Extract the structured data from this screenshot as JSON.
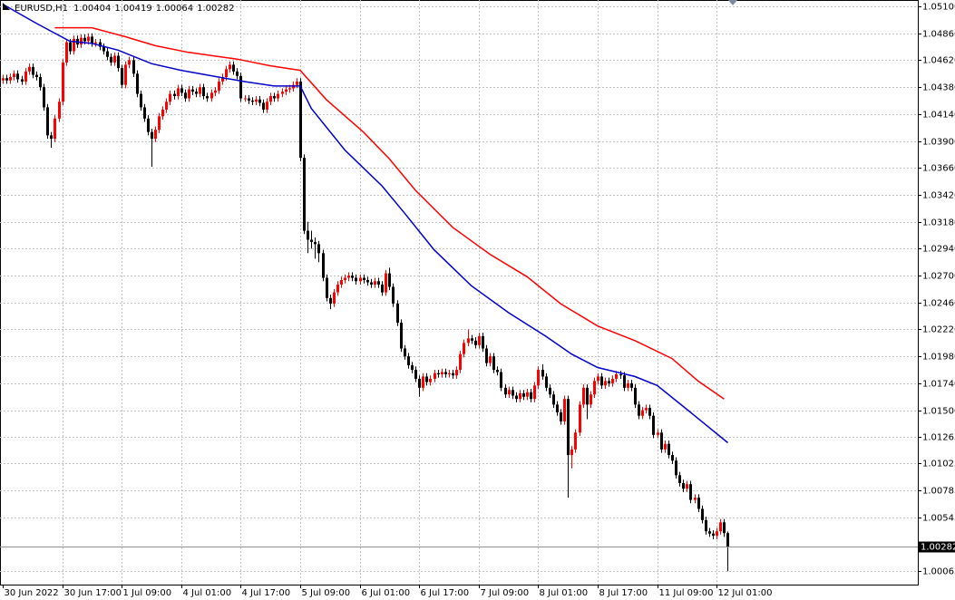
{
  "chart_data": {
    "type": "candlestick",
    "symbol": "EURUSD,H1",
    "bull_color": "#ff0000",
    "bear_color": "#000000",
    "grid": true,
    "ylim": [
      0.99945,
      1.05157
    ],
    "yticks": [
      {
        "value": 1.051,
        "label": "1.05100"
      },
      {
        "value": 1.0486,
        "label": "1.04860"
      },
      {
        "value": 1.0462,
        "label": "1.04620"
      },
      {
        "value": 1.0438,
        "label": "1.04380"
      },
      {
        "value": 1.0414,
        "label": "1.04140"
      },
      {
        "value": 1.039,
        "label": "1.03900"
      },
      {
        "value": 1.0366,
        "label": "1.03660"
      },
      {
        "value": 1.0342,
        "label": "1.03420"
      },
      {
        "value": 1.0318,
        "label": "1.03180"
      },
      {
        "value": 1.0294,
        "label": "1.02940"
      },
      {
        "value": 1.027,
        "label": "1.02700"
      },
      {
        "value": 1.0246,
        "label": "1.02460"
      },
      {
        "value": 1.0222,
        "label": "1.02220"
      },
      {
        "value": 1.0198,
        "label": "1.01980"
      },
      {
        "value": 1.0174,
        "label": "1.01740"
      },
      {
        "value": 1.015,
        "label": "1.01500"
      },
      1.01265,
      1.01025,
      1.00785,
      1.00545,
      1.00065
    ],
    "categories": [
      "30 Jun 2022",
      null,
      null,
      null,
      null,
      null,
      null,
      null,
      null,
      null,
      null,
      null,
      null,
      null,
      null,
      null,
      "30 Jun 17:00",
      null,
      null,
      null,
      null,
      null,
      null,
      null,
      null,
      null,
      null,
      null,
      null,
      null,
      null,
      null,
      "1 Jul 09:00",
      null,
      null,
      null,
      null,
      null,
      null,
      null,
      null,
      null,
      null,
      null,
      null,
      null,
      null,
      null,
      "4 Jul 01:00",
      null,
      null,
      null,
      null,
      null,
      null,
      null,
      null,
      null,
      null,
      null,
      null,
      null,
      null,
      null,
      "4 Jul 17:00",
      null,
      null,
      null,
      null,
      null,
      null,
      null,
      null,
      null,
      null,
      null,
      null,
      null,
      null,
      null,
      "5 Jul 09:00",
      null,
      null,
      null,
      null,
      null,
      null,
      null,
      null,
      null,
      null,
      null,
      null,
      null,
      null,
      null,
      "6 Jul 01:00",
      null,
      null,
      null,
      null,
      null,
      null,
      null,
      null,
      null,
      null,
      null,
      null,
      null,
      null,
      null,
      "6 Jul 17:00",
      null,
      null,
      null,
      null,
      null,
      null,
      null,
      null,
      null,
      null,
      null,
      null,
      null,
      null,
      null,
      "7 Jul 09:00",
      null,
      null,
      null,
      null,
      null,
      null,
      null,
      null,
      null,
      null,
      null,
      null,
      null,
      null,
      null,
      "8 Jul 01:00",
      null,
      null,
      null,
      null,
      null,
      null,
      null,
      null,
      null,
      null,
      null,
      null,
      null,
      null,
      null,
      "8 Jul 17:00",
      null,
      null,
      null,
      null,
      null,
      null,
      null,
      null,
      null,
      null,
      null,
      null,
      null,
      null,
      null,
      "11 Jul 09:00",
      null,
      null,
      null,
      null,
      null,
      null,
      null,
      null,
      null,
      null,
      null,
      null,
      null,
      null,
      null,
      "12 Jul 01:00",
      null,
      null,
      null
    ],
    "open": [
      1.0444,
      1.0446,
      1.0444,
      1.0447,
      1.045,
      1.0445,
      1.0443,
      1.0452,
      1.0456,
      1.0449,
      1.0447,
      1.0438,
      1.042,
      1.0395,
      1.0392,
      1.041,
      1.0425,
      1.046,
      1.0478,
      1.047,
      1.0481,
      1.0476,
      1.0482,
      1.0479,
      1.0483,
      1.0477,
      1.0478,
      1.0474,
      1.047,
      1.0465,
      1.046,
      1.0466,
      1.0455,
      1.044,
      1.0458,
      1.0462,
      1.045,
      1.0432,
      1.042,
      1.041,
      1.0398,
      1.0392,
      1.04,
      1.0412,
      1.0418,
      1.0425,
      1.0432,
      1.043,
      1.0437,
      1.0433,
      1.0428,
      1.0436,
      1.0434,
      1.0432,
      1.0438,
      1.043,
      1.0428,
      1.0433,
      1.0435,
      1.0443,
      1.0447,
      1.0454,
      1.0458,
      1.0452,
      1.0448,
      1.0428,
      1.0428,
      1.0426,
      1.0425,
      1.0427,
      1.0424,
      1.0418,
      1.0425,
      1.043,
      1.0428,
      1.0432,
      1.0434,
      1.0436,
      1.0437,
      1.044,
      1.0443,
      1.0375,
      1.031,
      1.0302,
      1.03,
      1.0298,
      1.029,
      1.0268,
      1.025,
      1.0245,
      1.0255,
      1.0262,
      1.0266,
      1.0268,
      1.027,
      1.0268,
      1.0265,
      1.0268,
      1.0266,
      1.0264,
      1.0262,
      1.0265,
      1.0262,
      1.0255,
      1.0272,
      1.026,
      1.0245,
      1.0228,
      1.0205,
      1.0198,
      1.019,
      1.0186,
      1.0178,
      1.017,
      1.018,
      1.0175,
      1.0178,
      1.0183,
      1.0182,
      1.0184,
      1.0182,
      1.0183,
      1.0181,
      1.0186,
      1.02,
      1.021,
      1.0214,
      1.0212,
      1.0208,
      1.0216,
      1.0205,
      1.0192,
      1.0198,
      1.0186,
      1.0184,
      1.017,
      1.0164,
      1.0168,
      1.0163,
      1.016,
      1.0165,
      1.0162,
      1.0166,
      1.016,
      1.0172,
      1.0186,
      1.018,
      1.017,
      1.0164,
      1.0155,
      1.0148,
      1.014,
      1.016,
      1.011,
      1.0115,
      1.013,
      1.0155,
      1.017,
      1.0155,
      1.0164,
      1.0176,
      1.018,
      1.0172,
      1.0176,
      1.0174,
      1.0178,
      1.0182,
      1.0181,
      1.017,
      1.0174,
      1.017,
      1.0155,
      1.0145,
      1.015,
      1.0152,
      1.0145,
      1.0128,
      1.013,
      1.0115,
      1.012,
      1.011,
      1.0105,
      1.0092,
      1.0085,
      1.008,
      1.0084,
      1.007,
      1.0072,
      1.0062,
      1.0052,
      1.0042,
      1.004,
      1.0038,
      1.0042,
      1.005,
      1.00404
    ],
    "high": [
      1.0449,
      1.0449,
      1.045,
      1.0453,
      1.0453,
      1.0448,
      1.0455,
      1.0459,
      1.0459,
      1.0452,
      1.045,
      1.0441,
      1.0423,
      1.0398,
      1.0413,
      1.0428,
      1.0463,
      1.0481,
      1.0481,
      1.0484,
      1.0484,
      1.0485,
      1.0485,
      1.0486,
      1.0486,
      1.0481,
      1.0481,
      1.0477,
      1.0473,
      1.0468,
      1.0469,
      1.0469,
      1.0458,
      1.0461,
      1.0465,
      1.0465,
      1.0453,
      1.0435,
      1.0423,
      1.0413,
      1.0401,
      1.0403,
      1.0415,
      1.0421,
      1.0428,
      1.0435,
      1.0435,
      1.044,
      1.044,
      1.0436,
      1.0439,
      1.0439,
      1.0437,
      1.0441,
      1.0441,
      1.0433,
      1.0436,
      1.0438,
      1.0446,
      1.045,
      1.0457,
      1.0461,
      1.0461,
      1.0455,
      1.0451,
      1.0431,
      1.0431,
      1.0429,
      1.043,
      1.043,
      1.0427,
      1.0428,
      1.0433,
      1.0433,
      1.0435,
      1.0437,
      1.0439,
      1.044,
      1.0443,
      1.0446,
      1.0446,
      1.0378,
      1.0318,
      1.031,
      1.0304,
      1.0301,
      1.0293,
      1.0271,
      1.0253,
      1.0258,
      1.0265,
      1.0269,
      1.0271,
      1.0273,
      1.0273,
      1.0271,
      1.0271,
      1.0271,
      1.0269,
      1.0267,
      1.0268,
      1.0268,
      1.0265,
      1.0275,
      1.0277,
      1.0263,
      1.0248,
      1.0231,
      1.0208,
      1.0201,
      1.0193,
      1.0189,
      1.0181,
      1.0183,
      1.0183,
      1.0181,
      1.0186,
      1.0186,
      1.0187,
      1.0187,
      1.0186,
      1.0186,
      1.0189,
      1.0203,
      1.0213,
      1.0222,
      1.0217,
      1.0215,
      1.0219,
      1.0219,
      1.0208,
      1.0201,
      1.0201,
      1.0189,
      1.0187,
      1.0173,
      1.0171,
      1.0171,
      1.0166,
      1.0168,
      1.0168,
      1.0169,
      1.0169,
      1.0175,
      1.0189,
      1.0191,
      1.0183,
      1.0173,
      1.0167,
      1.0158,
      1.0151,
      1.0163,
      1.0163,
      1.0118,
      1.0133,
      1.0158,
      1.0173,
      1.0173,
      1.0167,
      1.0179,
      1.0183,
      1.0183,
      1.0179,
      1.0179,
      1.0181,
      1.0185,
      1.0185,
      1.0184,
      1.0177,
      1.0177,
      1.0173,
      1.0158,
      1.0153,
      1.0155,
      1.0155,
      1.0148,
      1.0133,
      1.0133,
      1.0123,
      1.0123,
      1.0113,
      1.0108,
      1.0095,
      1.0088,
      1.0087,
      1.0087,
      1.0075,
      1.0075,
      1.0065,
      1.0055,
      1.0045,
      1.0043,
      1.0045,
      1.0053,
      1.0053,
      1.00419
    ],
    "low": [
      1.0441,
      1.0441,
      1.0441,
      1.0444,
      1.0442,
      1.044,
      1.044,
      1.0449,
      1.0446,
      1.0444,
      1.0435,
      1.0417,
      1.0392,
      1.0384,
      1.0389,
      1.0407,
      1.0422,
      1.0457,
      1.0467,
      1.0467,
      1.0473,
      1.0473,
      1.0476,
      1.0476,
      1.0474,
      1.0474,
      1.0471,
      1.0467,
      1.0462,
      1.0457,
      1.0457,
      1.0452,
      1.0437,
      1.0437,
      1.0455,
      1.0447,
      1.0429,
      1.0417,
      1.0407,
      1.0395,
      1.0367,
      1.0389,
      1.0397,
      1.0409,
      1.0415,
      1.0422,
      1.0427,
      1.0427,
      1.043,
      1.0425,
      1.0425,
      1.0431,
      1.0429,
      1.0429,
      1.0427,
      1.0425,
      1.0425,
      1.043,
      1.0432,
      1.044,
      1.0444,
      1.0451,
      1.0449,
      1.0445,
      1.0425,
      1.0425,
      1.0423,
      1.0422,
      1.0422,
      1.0421,
      1.0415,
      1.0415,
      1.0422,
      1.0425,
      1.0425,
      1.0429,
      1.0431,
      1.0433,
      1.0434,
      1.0437,
      1.0372,
      1.0307,
      1.029,
      1.0294,
      1.0285,
      1.0282,
      1.0265,
      1.0247,
      1.024,
      1.0242,
      1.0252,
      1.0259,
      1.0263,
      1.0265,
      1.0265,
      1.0262,
      1.0262,
      1.0263,
      1.0261,
      1.0259,
      1.0259,
      1.0259,
      1.0252,
      1.0252,
      1.0257,
      1.0242,
      1.0225,
      1.0202,
      1.0195,
      1.0187,
      1.0183,
      1.0175,
      1.0162,
      1.0167,
      1.0172,
      1.0172,
      1.0175,
      1.0179,
      1.0179,
      1.0179,
      1.0179,
      1.0178,
      1.0178,
      1.0183,
      1.0197,
      1.0207,
      1.0209,
      1.0205,
      1.0205,
      1.0202,
      1.0189,
      1.0189,
      1.0183,
      1.0181,
      1.0167,
      1.0161,
      1.0161,
      1.016,
      1.0157,
      1.0157,
      1.0159,
      1.0159,
      1.0157,
      1.0157,
      1.0169,
      1.0177,
      1.0167,
      1.0161,
      1.0152,
      1.0145,
      1.0137,
      1.0137,
      1.0072,
      1.0098,
      1.0112,
      1.0127,
      1.0152,
      1.0142,
      1.0152,
      1.0161,
      1.0173,
      1.0169,
      1.0169,
      1.0171,
      1.0171,
      1.0175,
      1.0178,
      1.0167,
      1.0167,
      1.0167,
      1.0152,
      1.0142,
      1.0142,
      1.0147,
      1.0142,
      1.0125,
      1.0125,
      1.0112,
      1.0112,
      1.0107,
      1.0102,
      1.0089,
      1.0082,
      1.0077,
      1.0077,
      1.0067,
      1.0067,
      1.0059,
      1.0049,
      1.0039,
      1.0037,
      1.0035,
      1.0035,
      1.0039,
      1.0037,
      1.00064
    ],
    "close": [
      1.0446,
      1.0444,
      1.0447,
      1.045,
      1.0445,
      1.0443,
      1.0452,
      1.0456,
      1.0449,
      1.0447,
      1.0438,
      1.042,
      1.0395,
      1.0392,
      1.041,
      1.0425,
      1.046,
      1.0478,
      1.047,
      1.0481,
      1.0476,
      1.0482,
      1.0479,
      1.0483,
      1.0477,
      1.0478,
      1.0474,
      1.047,
      1.0465,
      1.046,
      1.0466,
      1.0455,
      1.044,
      1.0458,
      1.0462,
      1.045,
      1.0432,
      1.042,
      1.041,
      1.0398,
      1.0392,
      1.04,
      1.0412,
      1.0418,
      1.0425,
      1.0432,
      1.043,
      1.0437,
      1.0433,
      1.0428,
      1.0436,
      1.0434,
      1.0432,
      1.0438,
      1.043,
      1.0428,
      1.0433,
      1.0435,
      1.0443,
      1.0447,
      1.0454,
      1.0458,
      1.0452,
      1.0448,
      1.0428,
      1.0428,
      1.0426,
      1.0425,
      1.0427,
      1.0424,
      1.0418,
      1.0425,
      1.043,
      1.0428,
      1.0432,
      1.0434,
      1.0436,
      1.0437,
      1.044,
      1.0443,
      1.0375,
      1.031,
      1.0302,
      1.03,
      1.0298,
      1.029,
      1.0268,
      1.025,
      1.0245,
      1.0255,
      1.0262,
      1.0266,
      1.0268,
      1.027,
      1.0268,
      1.0265,
      1.0268,
      1.0266,
      1.0264,
      1.0262,
      1.0265,
      1.0262,
      1.0255,
      1.0272,
      1.026,
      1.0245,
      1.0228,
      1.0205,
      1.0198,
      1.019,
      1.0186,
      1.0178,
      1.017,
      1.018,
      1.0175,
      1.0178,
      1.0183,
      1.0182,
      1.0184,
      1.0182,
      1.0183,
      1.0181,
      1.0186,
      1.02,
      1.021,
      1.0214,
      1.0212,
      1.0208,
      1.0216,
      1.0205,
      1.0192,
      1.0198,
      1.0186,
      1.0184,
      1.017,
      1.0164,
      1.0168,
      1.0163,
      1.016,
      1.0165,
      1.0162,
      1.0166,
      1.016,
      1.0172,
      1.0186,
      1.018,
      1.017,
      1.0164,
      1.0155,
      1.0148,
      1.014,
      1.016,
      1.011,
      1.0115,
      1.013,
      1.0155,
      1.017,
      1.0155,
      1.0164,
      1.0176,
      1.018,
      1.0172,
      1.0176,
      1.0174,
      1.0178,
      1.0182,
      1.0181,
      1.017,
      1.0174,
      1.017,
      1.0155,
      1.0145,
      1.015,
      1.0152,
      1.0145,
      1.0128,
      1.013,
      1.0115,
      1.012,
      1.011,
      1.0105,
      1.0092,
      1.0085,
      1.008,
      1.0084,
      1.007,
      1.0072,
      1.0062,
      1.0052,
      1.0042,
      1.004,
      1.0038,
      1.0042,
      1.005,
      1.00404,
      1.00282
    ],
    "lines": [
      {
        "color": "#0000cc",
        "x": [
          0,
          9,
          18,
          24,
          31,
          40,
          48,
          58,
          65,
          73,
          80,
          83,
          92,
          102,
          108,
          116,
          126,
          136,
          146,
          153,
          160,
          170,
          176,
          185,
          195
        ],
        "values": [
          1.0512,
          1.0495,
          1.0479,
          1.0477,
          1.0471,
          1.0459,
          1.0453,
          1.0447,
          1.0443,
          1.0439,
          1.0439,
          1.0419,
          1.0382,
          1.035,
          1.0326,
          1.0293,
          1.0261,
          1.0237,
          1.0216,
          1.02,
          1.0188,
          1.018,
          1.0172,
          1.0148,
          1.0121
        ]
      },
      {
        "color": "#ff0000",
        "x": [
          14,
          24,
          33,
          41,
          50,
          63,
          72,
          80,
          87,
          97,
          104,
          111,
          121,
          131,
          141,
          150,
          160,
          170,
          180,
          187,
          194
        ],
        "values": [
          1.0491,
          1.0491,
          1.0483,
          1.0475,
          1.0469,
          1.0463,
          1.0457,
          1.0453,
          1.0427,
          1.0398,
          1.0374,
          1.0346,
          1.0313,
          1.0289,
          1.0269,
          1.0245,
          1.0225,
          1.0212,
          1.0196,
          1.0176,
          1.016
        ]
      }
    ]
  }
}
